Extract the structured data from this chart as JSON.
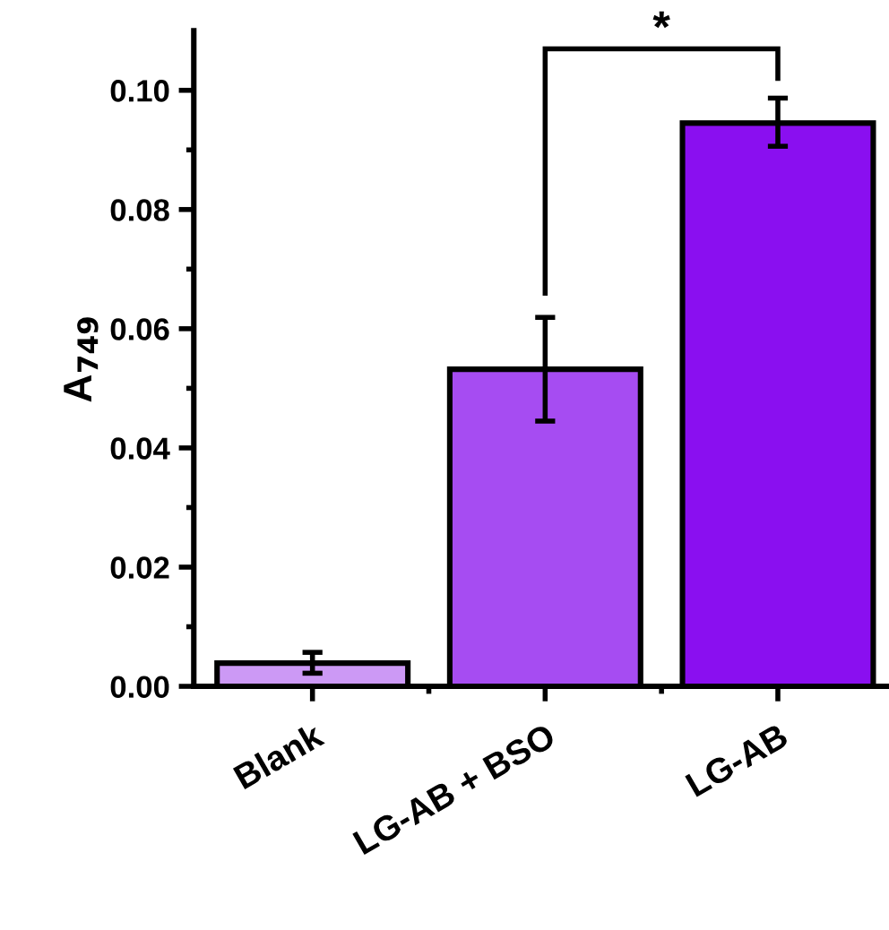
{
  "chart_data": {
    "type": "bar",
    "ylabel": "A$_{749}$",
    "categories": [
      "Blank",
      "LG-AB + BSO",
      "LG-AB"
    ],
    "values": [
      0.0039,
      0.0532,
      0.0945
    ],
    "errors": [
      [
        0.0022,
        0.0057
      ],
      [
        0.0445,
        0.0619
      ],
      [
        0.0906,
        0.0987
      ]
    ],
    "colors": [
      "#cc99f5",
      "#a64cf2",
      "#8a0ff0"
    ],
    "ylim": [
      0,
      0.11
    ],
    "yticks": [
      {
        "value": 0,
        "label": "0.00"
      },
      {
        "value": 0.02,
        "label": "0.02"
      },
      {
        "value": 0.04,
        "label": "0.04"
      },
      {
        "value": 0.06,
        "label": "0.06"
      },
      {
        "value": 0.08,
        "label": "0.08"
      },
      {
        "value": 0.1,
        "label": "0.10"
      }
    ],
    "annotations": [
      "*"
    ],
    "grid": false,
    "legend": false
  }
}
